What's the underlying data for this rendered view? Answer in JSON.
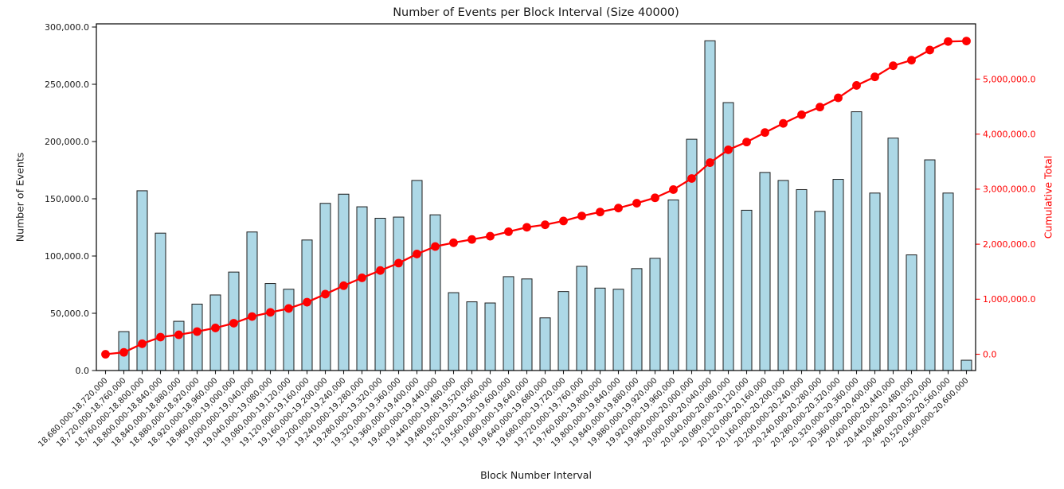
{
  "figure": {
    "title": "Number of Events per Block Interval (Size 40000)",
    "xlabel": "Block Number Interval",
    "ylabel_left": "Number of Events",
    "ylabel_right": "Cumulative Total"
  },
  "chart_data": {
    "type": "bar",
    "title": "Number of Events per Block Interval (Size 40000)",
    "xlabel": "Block Number Interval",
    "ylabel": "Number of Events",
    "ylabel_right": "Cumulative Total",
    "grid": false,
    "legend_position": "none",
    "background": "#FFFFFF",
    "categories": [
      "18,680,000-18,720,000",
      "18,720,000-18,760,000",
      "18,760,000-18,800,000",
      "18,800,000-18,840,000",
      "18,840,000-18,880,000",
      "18,880,000-18,920,000",
      "18,920,000-18,960,000",
      "18,960,000-19,000,000",
      "19,000,000-19,040,000",
      "19,040,000-19,080,000",
      "19,080,000-19,120,000",
      "19,120,000-19,160,000",
      "19,160,000-19,200,000",
      "19,200,000-19,240,000",
      "19,240,000-19,280,000",
      "19,280,000-19,320,000",
      "19,320,000-19,360,000",
      "19,360,000-19,400,000",
      "19,400,000-19,440,000",
      "19,440,000-19,480,000",
      "19,480,000-19,520,000",
      "19,520,000-19,560,000",
      "19,560,000-19,600,000",
      "19,600,000-19,640,000",
      "19,640,000-19,680,000",
      "19,680,000-19,720,000",
      "19,720,000-19,760,000",
      "19,760,000-19,800,000",
      "19,800,000-19,840,000",
      "19,840,000-19,880,000",
      "19,880,000-19,920,000",
      "19,920,000-19,960,000",
      "19,960,000-20,000,000",
      "20,000,000-20,040,000",
      "20,040,000-20,080,000",
      "20,080,000-20,120,000",
      "20,120,000-20,160,000",
      "20,160,000-20,200,000",
      "20,200,000-20,240,000",
      "20,240,000-20,280,000",
      "20,280,000-20,320,000",
      "20,320,000-20,360,000",
      "20,360,000-20,400,000",
      "20,400,000-20,440,000",
      "20,440,000-20,480,000",
      "20,480,000-20,520,000",
      "20,520,000-20,560,000",
      "20,560,000-20,600,000"
    ],
    "series": [
      {
        "name": "Number of Events",
        "type": "bar",
        "yaxis": "left",
        "color": "#ADD8E6",
        "edge_color": "#1c1c1c",
        "values": [
          0,
          34000,
          157000,
          120000,
          43000,
          58000,
          66000,
          86000,
          121000,
          76000,
          71000,
          114000,
          146000,
          154000,
          143000,
          133000,
          134000,
          166000,
          136000,
          68000,
          60000,
          59000,
          82000,
          80000,
          46000,
          69000,
          91000,
          72000,
          71000,
          89000,
          98000,
          149000,
          202000,
          288000,
          234000,
          140000,
          173000,
          166000,
          158000,
          139000,
          167000,
          226000,
          155000,
          203000,
          101000,
          184000,
          155000,
          9000
        ]
      },
      {
        "name": "Cumulative Total",
        "type": "line",
        "yaxis": "right",
        "color": "#FF0000",
        "marker": "circle",
        "values": [
          0,
          34000,
          191000,
          311000,
          354000,
          412000,
          478000,
          564000,
          685000,
          761000,
          832000,
          946000,
          1092000,
          1246000,
          1389000,
          1522000,
          1656000,
          1822000,
          1958000,
          2026000,
          2086000,
          2145000,
          2227000,
          2307000,
          2353000,
          2422000,
          2513000,
          2585000,
          2656000,
          2745000,
          2843000,
          2992000,
          3194000,
          3482000,
          3716000,
          3856000,
          4029000,
          4195000,
          4353000,
          4492000,
          4659000,
          4885000,
          5040000,
          5243000,
          5344000,
          5528000,
          5683000,
          5692000
        ]
      }
    ],
    "left_axis": {
      "ylim": [
        0,
        302778
      ],
      "tick_values": [
        0,
        50000,
        100000,
        150000,
        200000,
        250000,
        300000
      ],
      "tick_labels": [
        "0.0",
        "50,000.0",
        "100,000.0",
        "150,000.0",
        "200,000.0",
        "250,000.0",
        "300,000.0"
      ],
      "color": "#1a1a1a"
    },
    "right_axis": {
      "ylim": [
        -296000,
        6004000
      ],
      "tick_values": [
        0,
        1000000,
        2000000,
        3000000,
        4000000,
        5000000
      ],
      "tick_labels": [
        "0.0",
        "1,000,000.0",
        "2,000,000.0",
        "3,000,000.0",
        "4,000,000.0",
        "5,000,000.0"
      ],
      "color": "#FF0000"
    }
  }
}
